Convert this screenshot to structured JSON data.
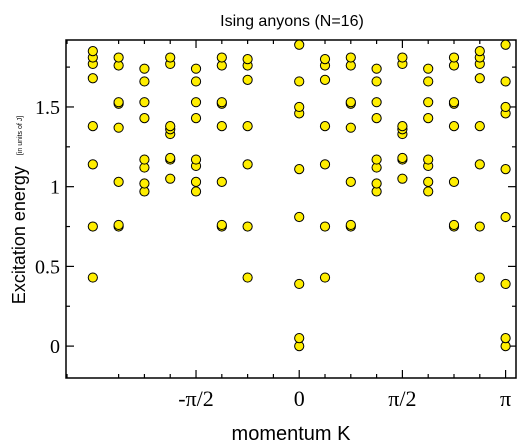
{
  "chart_data": {
    "type": "scatter",
    "title": "Ising anyons (N=16)",
    "xlabel": "momentum K",
    "ylabel": "Excitation energy",
    "ylabel_unit": "[in units of J]",
    "xlim": [
      -3.55,
      3.3
    ],
    "ylim": [
      -0.2,
      1.92
    ],
    "xticks": [
      {
        "value": -1.5708,
        "label": "-π/2"
      },
      {
        "value": 0,
        "label": "0"
      },
      {
        "value": 1.5708,
        "label": "π/2"
      },
      {
        "value": 3.1416,
        "label": "π"
      }
    ],
    "yticks": [
      {
        "value": 0,
        "label": "0"
      },
      {
        "value": 0.5,
        "label": "0.5"
      },
      {
        "value": 1,
        "label": "1"
      },
      {
        "value": 1.5,
        "label": "1.5"
      }
    ],
    "marker_color": "#ffee00",
    "marker_edge": "#000000",
    "grid": false,
    "series": [
      {
        "name": "",
        "points": [
          {
            "x": -3.1416,
            "y": 0.43
          },
          {
            "x": -3.1416,
            "y": 0.75
          },
          {
            "x": -3.1416,
            "y": 1.14
          },
          {
            "x": -3.1416,
            "y": 1.38
          },
          {
            "x": -3.1416,
            "y": 1.68
          },
          {
            "x": -3.1416,
            "y": 1.77
          },
          {
            "x": -3.1416,
            "y": 1.81
          },
          {
            "x": -3.1416,
            "y": 1.85
          },
          {
            "x": -2.7489,
            "y": 0.75
          },
          {
            "x": -2.7489,
            "y": 0.76
          },
          {
            "x": -2.7489,
            "y": 1.03
          },
          {
            "x": -2.7489,
            "y": 1.37
          },
          {
            "x": -2.7489,
            "y": 1.52
          },
          {
            "x": -2.7489,
            "y": 1.53
          },
          {
            "x": -2.7489,
            "y": 1.76
          },
          {
            "x": -2.7489,
            "y": 1.81
          },
          {
            "x": -2.3562,
            "y": 0.97
          },
          {
            "x": -2.3562,
            "y": 1.02
          },
          {
            "x": -2.3562,
            "y": 1.12
          },
          {
            "x": -2.3562,
            "y": 1.17
          },
          {
            "x": -2.3562,
            "y": 1.43
          },
          {
            "x": -2.3562,
            "y": 1.53
          },
          {
            "x": -2.3562,
            "y": 1.66
          },
          {
            "x": -2.3562,
            "y": 1.74
          },
          {
            "x": -1.9635,
            "y": 1.05
          },
          {
            "x": -1.9635,
            "y": 1.17
          },
          {
            "x": -1.9635,
            "y": 1.18
          },
          {
            "x": -1.9635,
            "y": 1.33
          },
          {
            "x": -1.9635,
            "y": 1.36
          },
          {
            "x": -1.9635,
            "y": 1.38
          },
          {
            "x": -1.9635,
            "y": 1.77
          },
          {
            "x": -1.9635,
            "y": 1.81
          },
          {
            "x": -1.5708,
            "y": 0.97
          },
          {
            "x": -1.5708,
            "y": 1.03
          },
          {
            "x": -1.5708,
            "y": 1.13
          },
          {
            "x": -1.5708,
            "y": 1.17
          },
          {
            "x": -1.5708,
            "y": 1.43
          },
          {
            "x": -1.5708,
            "y": 1.53
          },
          {
            "x": -1.5708,
            "y": 1.66
          },
          {
            "x": -1.5708,
            "y": 1.74
          },
          {
            "x": -1.1781,
            "y": 0.75
          },
          {
            "x": -1.1781,
            "y": 0.76
          },
          {
            "x": -1.1781,
            "y": 1.03
          },
          {
            "x": -1.1781,
            "y": 1.38
          },
          {
            "x": -1.1781,
            "y": 1.52
          },
          {
            "x": -1.1781,
            "y": 1.53
          },
          {
            "x": -1.1781,
            "y": 1.76
          },
          {
            "x": -1.1781,
            "y": 1.81
          },
          {
            "x": -0.7854,
            "y": 0.43
          },
          {
            "x": -0.7854,
            "y": 0.75
          },
          {
            "x": -0.7854,
            "y": 1.14
          },
          {
            "x": -0.7854,
            "y": 1.38
          },
          {
            "x": -0.7854,
            "y": 1.67
          },
          {
            "x": -0.7854,
            "y": 1.76
          },
          {
            "x": -0.7854,
            "y": 1.8
          },
          {
            "x": 0,
            "y": 0.0
          },
          {
            "x": 0,
            "y": 0.05
          },
          {
            "x": 0,
            "y": 0.39
          },
          {
            "x": 0,
            "y": 0.81
          },
          {
            "x": 0,
            "y": 1.11
          },
          {
            "x": 0,
            "y": 1.46
          },
          {
            "x": 0,
            "y": 1.5
          },
          {
            "x": 0,
            "y": 1.66
          },
          {
            "x": 0,
            "y": 1.89
          },
          {
            "x": 0.3927,
            "y": 0.43
          },
          {
            "x": 0.3927,
            "y": 0.75
          },
          {
            "x": 0.3927,
            "y": 1.14
          },
          {
            "x": 0.3927,
            "y": 1.38
          },
          {
            "x": 0.3927,
            "y": 1.67
          },
          {
            "x": 0.3927,
            "y": 1.76
          },
          {
            "x": 0.3927,
            "y": 1.8
          },
          {
            "x": 0.7854,
            "y": 0.75
          },
          {
            "x": 0.7854,
            "y": 0.76
          },
          {
            "x": 0.7854,
            "y": 1.03
          },
          {
            "x": 0.7854,
            "y": 1.37
          },
          {
            "x": 0.7854,
            "y": 1.52
          },
          {
            "x": 0.7854,
            "y": 1.53
          },
          {
            "x": 0.7854,
            "y": 1.76
          },
          {
            "x": 0.7854,
            "y": 1.81
          },
          {
            "x": 1.1781,
            "y": 0.97
          },
          {
            "x": 1.1781,
            "y": 1.02
          },
          {
            "x": 1.1781,
            "y": 1.12
          },
          {
            "x": 1.1781,
            "y": 1.17
          },
          {
            "x": 1.1781,
            "y": 1.43
          },
          {
            "x": 1.1781,
            "y": 1.53
          },
          {
            "x": 1.1781,
            "y": 1.66
          },
          {
            "x": 1.1781,
            "y": 1.74
          },
          {
            "x": 1.5708,
            "y": 1.05
          },
          {
            "x": 1.5708,
            "y": 1.17
          },
          {
            "x": 1.5708,
            "y": 1.18
          },
          {
            "x": 1.5708,
            "y": 1.33
          },
          {
            "x": 1.5708,
            "y": 1.36
          },
          {
            "x": 1.5708,
            "y": 1.38
          },
          {
            "x": 1.5708,
            "y": 1.77
          },
          {
            "x": 1.5708,
            "y": 1.81
          },
          {
            "x": 1.9635,
            "y": 0.97
          },
          {
            "x": 1.9635,
            "y": 1.03
          },
          {
            "x": 1.9635,
            "y": 1.13
          },
          {
            "x": 1.9635,
            "y": 1.17
          },
          {
            "x": 1.9635,
            "y": 1.43
          },
          {
            "x": 1.9635,
            "y": 1.53
          },
          {
            "x": 1.9635,
            "y": 1.66
          },
          {
            "x": 1.9635,
            "y": 1.74
          },
          {
            "x": 2.3562,
            "y": 0.75
          },
          {
            "x": 2.3562,
            "y": 0.76
          },
          {
            "x": 2.3562,
            "y": 1.03
          },
          {
            "x": 2.3562,
            "y": 1.38
          },
          {
            "x": 2.3562,
            "y": 1.52
          },
          {
            "x": 2.3562,
            "y": 1.53
          },
          {
            "x": 2.3562,
            "y": 1.76
          },
          {
            "x": 2.3562,
            "y": 1.81
          },
          {
            "x": 2.7489,
            "y": 0.43
          },
          {
            "x": 2.7489,
            "y": 0.75
          },
          {
            "x": 2.7489,
            "y": 1.14
          },
          {
            "x": 2.7489,
            "y": 1.38
          },
          {
            "x": 2.7489,
            "y": 1.68
          },
          {
            "x": 2.7489,
            "y": 1.77
          },
          {
            "x": 2.7489,
            "y": 1.81
          },
          {
            "x": 2.7489,
            "y": 1.85
          },
          {
            "x": 3.1416,
            "y": 0.0
          },
          {
            "x": 3.1416,
            "y": 0.05
          },
          {
            "x": 3.1416,
            "y": 0.39
          },
          {
            "x": 3.1416,
            "y": 0.81
          },
          {
            "x": 3.1416,
            "y": 1.11
          },
          {
            "x": 3.1416,
            "y": 1.46
          },
          {
            "x": 3.1416,
            "y": 1.5
          },
          {
            "x": 3.1416,
            "y": 1.66
          },
          {
            "x": 3.1416,
            "y": 1.89
          }
        ]
      }
    ]
  }
}
